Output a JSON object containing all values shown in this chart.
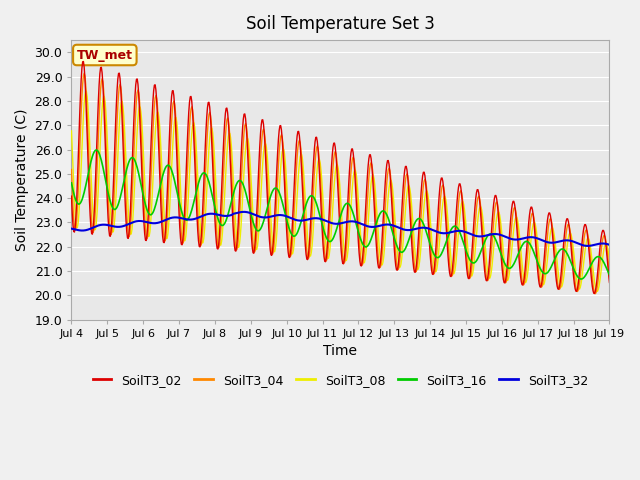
{
  "title": "Soil Temperature Set 3",
  "xlabel": "Time",
  "ylabel": "Soil Temperature (C)",
  "ylim": [
    19.0,
    30.5
  ],
  "yticks": [
    19.0,
    20.0,
    21.0,
    22.0,
    23.0,
    24.0,
    25.0,
    26.0,
    27.0,
    28.0,
    29.0,
    30.0
  ],
  "xtick_labels": [
    "Jul 4",
    "Jul 5",
    "Jul 6",
    "Jul 7",
    "Jul 8",
    "Jul 9",
    "Jul 10",
    "Jul 11",
    "Jul 12",
    "Jul 13",
    "Jul 14",
    "Jul 15",
    "Jul 16",
    "Jul 17",
    "Jul 18",
    "Jul 19"
  ],
  "series_colors": {
    "SoilT3_02": "#dd0000",
    "SoilT3_04": "#ff8800",
    "SoilT3_08": "#eeee00",
    "SoilT3_16": "#00cc00",
    "SoilT3_32": "#0000dd"
  },
  "legend_label_box_color": "#ffffcc",
  "legend_label_box_edge": "#cc8800",
  "annotation_text": "TW_met",
  "annotation_color": "#aa0000",
  "plot_bg_color": "#e8e8e8",
  "axes_bg_color": "#f0f0f0",
  "grid_color": "#ffffff",
  "linewidth": 1.0,
  "title_fontsize": 12
}
